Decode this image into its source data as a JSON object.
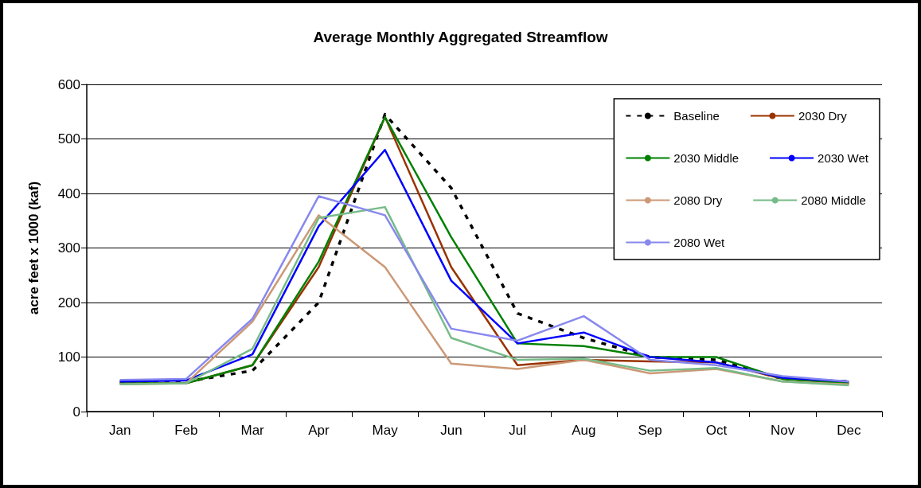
{
  "chart_data": {
    "type": "line",
    "title": "Average Monthly Aggregated Streamflow",
    "ylabel": "acre feet x 1000 (kaf)",
    "categories": [
      "Jan",
      "Feb",
      "Mar",
      "Apr",
      "May",
      "Jun",
      "Jul",
      "Aug",
      "Sep",
      "Oct",
      "Nov",
      "Dec"
    ],
    "ylim": [
      0,
      600
    ],
    "yticks": [
      0,
      100,
      200,
      300,
      400,
      500,
      600
    ],
    "grid": "y",
    "legend": "top right",
    "marker": "none",
    "series": [
      {
        "name": "Baseline",
        "color": "#000000",
        "line_style": "dashed",
        "values": [
          55,
          55,
          75,
          200,
          545,
          410,
          180,
          135,
          100,
          95,
          60,
          55
        ]
      },
      {
        "name": "2030 Dry",
        "color": "#993300",
        "line_style": "solid",
        "values": [
          52,
          52,
          85,
          265,
          540,
          265,
          85,
          95,
          92,
          90,
          60,
          52
        ]
      },
      {
        "name": "2030 Middle",
        "color": "#008000",
        "line_style": "solid",
        "values": [
          52,
          52,
          85,
          275,
          540,
          320,
          125,
          120,
          100,
          100,
          60,
          52
        ]
      },
      {
        "name": "2030 Wet",
        "color": "#0000ff",
        "line_style": "solid",
        "values": [
          55,
          57,
          105,
          340,
          480,
          240,
          125,
          145,
          100,
          90,
          62,
          55
        ]
      },
      {
        "name": "2080 Dry",
        "color": "#cc9977",
        "line_style": "solid",
        "values": [
          50,
          52,
          165,
          360,
          265,
          88,
          78,
          95,
          70,
          78,
          55,
          50
        ]
      },
      {
        "name": "2080 Middle",
        "color": "#77bb88",
        "line_style": "solid",
        "values": [
          50,
          52,
          115,
          355,
          375,
          135,
          95,
          97,
          75,
          80,
          55,
          48
        ]
      },
      {
        "name": "2080 Wet",
        "color": "#8888ee",
        "line_style": "solid",
        "values": [
          58,
          60,
          170,
          395,
          360,
          152,
          130,
          175,
          95,
          85,
          65,
          55
        ]
      }
    ]
  }
}
